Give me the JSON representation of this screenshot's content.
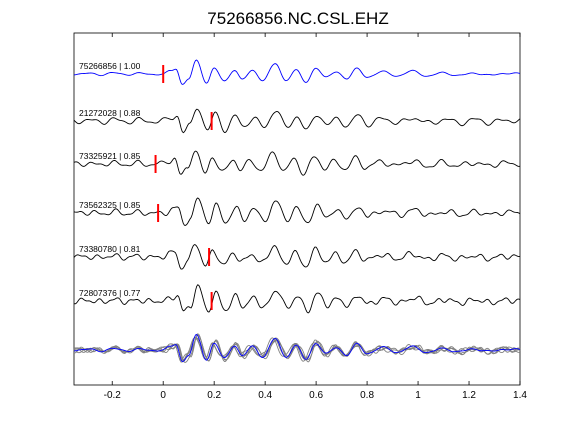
{
  "chart_data": {
    "type": "line",
    "title": "75266856.NC.CSL.EHZ",
    "xlabel": "",
    "ylabel": "",
    "xlim": [
      -0.35,
      1.4
    ],
    "xticks": [
      -0.2,
      0,
      0.2,
      0.4,
      0.6,
      0.8,
      1,
      1.2,
      1.4
    ],
    "xtick_labels": [
      "-0.2",
      "0",
      "0.2",
      "0.4",
      "0.6",
      "0.8",
      "1",
      "1.2",
      "1.4"
    ],
    "grid": false,
    "colors": {
      "master": "#0000ff",
      "trace": "#000000",
      "overlay": "#808080",
      "pick": "#ff0000",
      "axes": "#000000"
    },
    "series": [
      {
        "name": "75266856 | 1.00",
        "pick_time": 0.0,
        "color": "#0000ff"
      },
      {
        "name": "21272028 | 0.88",
        "pick_time": 0.19,
        "color": "#000000"
      },
      {
        "name": "73325921 | 0.85",
        "pick_time": -0.03,
        "color": "#000000"
      },
      {
        "name": "73562325 | 0.85",
        "pick_time": -0.02,
        "color": "#000000"
      },
      {
        "name": "73380780 | 0.81",
        "pick_time": 0.18,
        "color": "#000000"
      },
      {
        "name": "72807376 | 0.77",
        "pick_time": 0.19,
        "color": "#000000"
      }
    ],
    "waveform_peaks": [
      [
        -0.35,
        0
      ],
      [
        -0.3,
        0.04
      ],
      [
        -0.25,
        -0.05
      ],
      [
        -0.2,
        0.08
      ],
      [
        -0.15,
        -0.04
      ],
      [
        -0.1,
        0.05
      ],
      [
        -0.05,
        -0.03
      ],
      [
        0.0,
        0.02
      ],
      [
        0.03,
        0.2
      ],
      [
        0.05,
        0.35
      ],
      [
        0.075,
        -0.7
      ],
      [
        0.1,
        -0.3
      ],
      [
        0.13,
        0.9
      ],
      [
        0.17,
        -0.6
      ],
      [
        0.2,
        0.45
      ],
      [
        0.24,
        -0.55
      ],
      [
        0.28,
        0.3
      ],
      [
        0.31,
        -0.35
      ],
      [
        0.35,
        0.2
      ],
      [
        0.39,
        -0.4
      ],
      [
        0.44,
        0.7
      ],
      [
        0.48,
        -0.45
      ],
      [
        0.52,
        0.3
      ],
      [
        0.56,
        -0.6
      ],
      [
        0.6,
        0.45
      ],
      [
        0.64,
        -0.25
      ],
      [
        0.68,
        0.15
      ],
      [
        0.72,
        -0.3
      ],
      [
        0.76,
        0.35
      ],
      [
        0.8,
        -0.2
      ],
      [
        0.86,
        0.15
      ],
      [
        0.92,
        -0.12
      ],
      [
        0.98,
        0.2
      ],
      [
        1.04,
        -0.15
      ],
      [
        1.1,
        0.1
      ],
      [
        1.16,
        -0.12
      ],
      [
        1.22,
        0.08
      ],
      [
        1.28,
        -0.1
      ],
      [
        1.34,
        0.06
      ],
      [
        1.4,
        0
      ]
    ]
  }
}
